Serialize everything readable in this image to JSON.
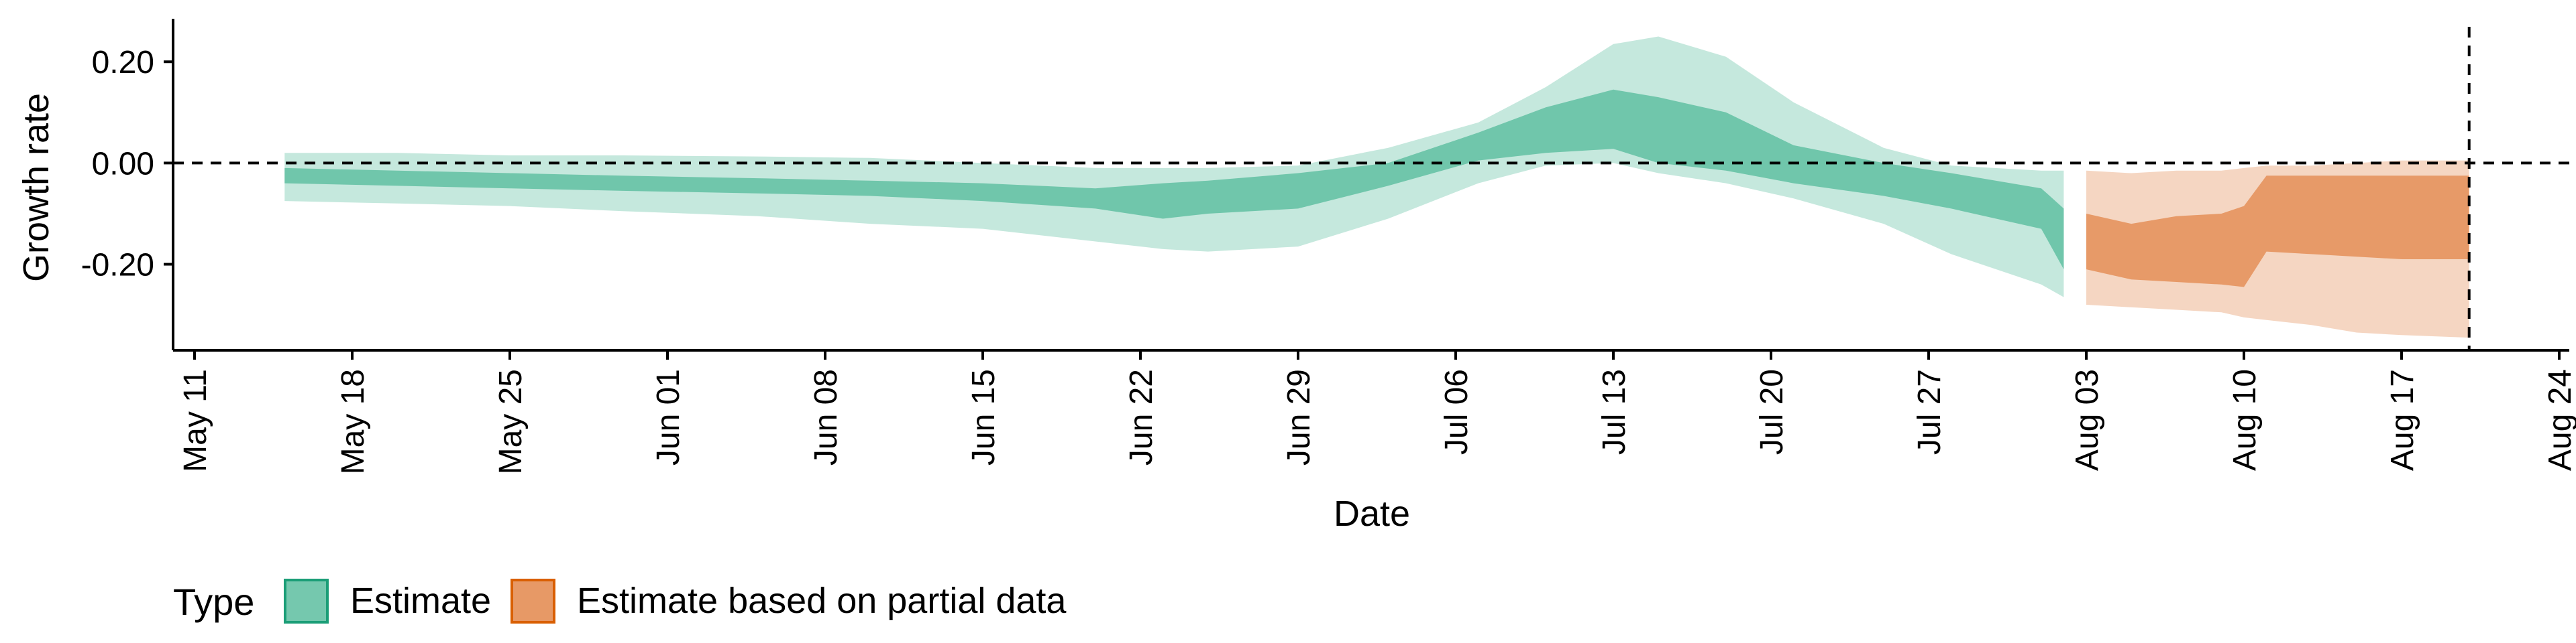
{
  "chart_data": {
    "type": "area",
    "xlabel": "Date",
    "ylabel": "Growth rate",
    "x_range": [
      "2020-05-11",
      "2020-08-24"
    ],
    "ylim": [
      -0.37,
      0.285
    ],
    "x_ticks": [
      {
        "date": "2020-05-11",
        "label": "May 11"
      },
      {
        "date": "2020-05-18",
        "label": "May 18"
      },
      {
        "date": "2020-05-25",
        "label": "May 25"
      },
      {
        "date": "2020-06-01",
        "label": "Jun 01"
      },
      {
        "date": "2020-06-08",
        "label": "Jun 08"
      },
      {
        "date": "2020-06-15",
        "label": "Jun 15"
      },
      {
        "date": "2020-06-22",
        "label": "Jun 22"
      },
      {
        "date": "2020-06-29",
        "label": "Jun 29"
      },
      {
        "date": "2020-07-06",
        "label": "Jul 06"
      },
      {
        "date": "2020-07-13",
        "label": "Jul 13"
      },
      {
        "date": "2020-07-20",
        "label": "Jul 20"
      },
      {
        "date": "2020-07-27",
        "label": "Jul 27"
      },
      {
        "date": "2020-08-03",
        "label": "Aug 03"
      },
      {
        "date": "2020-08-10",
        "label": "Aug 10"
      },
      {
        "date": "2020-08-17",
        "label": "Aug 17"
      },
      {
        "date": "2020-08-24",
        "label": "Aug 24"
      }
    ],
    "y_ticks": [
      {
        "value": 0.2,
        "label": "0.20"
      },
      {
        "value": 0.0,
        "label": "0.00"
      },
      {
        "value": -0.2,
        "label": "-0.20"
      }
    ],
    "reference_lines": {
      "horizontal_y": 0.0,
      "vertical_date": "2020-08-20"
    },
    "grid": false,
    "legend": {
      "title": "Type",
      "position": "bottom-left"
    },
    "series": [
      {
        "name": "Estimate",
        "color": "#66C2A5",
        "x": [
          "2020-05-15",
          "2020-05-20",
          "2020-05-25",
          "2020-05-30",
          "2020-06-05",
          "2020-06-10",
          "2020-06-15",
          "2020-06-20",
          "2020-06-23",
          "2020-06-25",
          "2020-06-29",
          "2020-07-03",
          "2020-07-07",
          "2020-07-10",
          "2020-07-13",
          "2020-07-15",
          "2020-07-18",
          "2020-07-21",
          "2020-07-25",
          "2020-07-28",
          "2020-08-01",
          "2020-08-02"
        ],
        "upper_90": [
          0.02,
          0.02,
          0.015,
          0.015,
          0.013,
          0.01,
          0.0,
          -0.01,
          -0.01,
          -0.01,
          -0.005,
          0.03,
          0.08,
          0.15,
          0.235,
          0.25,
          0.21,
          0.12,
          0.03,
          -0.005,
          -0.015,
          -0.015
        ],
        "upper_50": [
          -0.01,
          -0.015,
          -0.02,
          -0.025,
          -0.03,
          -0.035,
          -0.04,
          -0.05,
          -0.04,
          -0.035,
          -0.02,
          0.0,
          0.06,
          0.11,
          0.145,
          0.13,
          0.1,
          0.035,
          0.0,
          -0.02,
          -0.05,
          -0.09
        ],
        "lower_50": [
          -0.04,
          -0.045,
          -0.05,
          -0.055,
          -0.06,
          -0.065,
          -0.075,
          -0.09,
          -0.11,
          -0.1,
          -0.09,
          -0.045,
          0.005,
          0.02,
          0.028,
          0.0,
          -0.015,
          -0.04,
          -0.065,
          -0.09,
          -0.13,
          -0.21
        ],
        "lower_90": [
          -0.075,
          -0.08,
          -0.085,
          -0.095,
          -0.105,
          -0.12,
          -0.13,
          -0.155,
          -0.17,
          -0.175,
          -0.165,
          -0.11,
          -0.04,
          -0.005,
          0.0,
          -0.02,
          -0.04,
          -0.07,
          -0.12,
          -0.18,
          -0.24,
          -0.265
        ]
      },
      {
        "name": "Estimate based on partial data",
        "color": "#E6945E",
        "x": [
          "2020-08-03",
          "2020-08-05",
          "2020-08-07",
          "2020-08-09",
          "2020-08-10",
          "2020-08-11",
          "2020-08-13",
          "2020-08-15",
          "2020-08-17",
          "2020-08-20"
        ],
        "upper_90": [
          -0.015,
          -0.02,
          -0.015,
          -0.015,
          -0.01,
          -0.005,
          -0.005,
          0.0,
          0.005,
          0.005
        ],
        "upper_50": [
          -0.1,
          -0.12,
          -0.105,
          -0.1,
          -0.085,
          -0.025,
          -0.025,
          -0.025,
          -0.025,
          -0.025
        ],
        "lower_50": [
          -0.21,
          -0.23,
          -0.235,
          -0.24,
          -0.245,
          -0.175,
          -0.18,
          -0.185,
          -0.19,
          -0.19
        ],
        "lower_90": [
          -0.28,
          -0.285,
          -0.29,
          -0.295,
          -0.305,
          -0.31,
          -0.32,
          -0.335,
          -0.34,
          -0.345
        ]
      }
    ]
  }
}
